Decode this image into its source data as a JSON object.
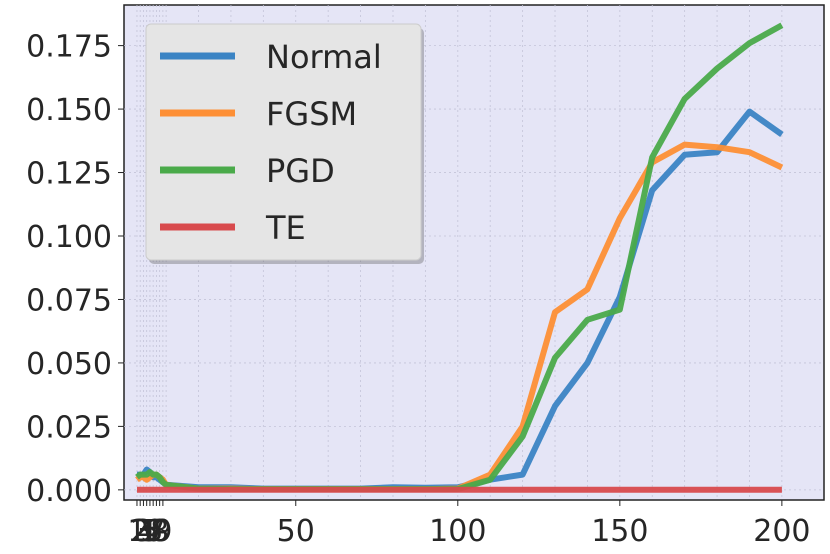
{
  "chart_data": {
    "type": "line",
    "title": "",
    "xlabel": "",
    "ylabel": "",
    "x": [
      1,
      2,
      3,
      4,
      5,
      6,
      7,
      8,
      9,
      10,
      20,
      30,
      40,
      50,
      60,
      70,
      80,
      90,
      100,
      110,
      120,
      130,
      140,
      150,
      160,
      170,
      180,
      190,
      200
    ],
    "x_ticks": [
      {
        "value": 1,
        "label": "1"
      },
      {
        "value": 2,
        "label": "2"
      },
      {
        "value": 3,
        "label": "3"
      },
      {
        "value": 4,
        "label": "4"
      },
      {
        "value": 5,
        "label": "5"
      },
      {
        "value": 6,
        "label": "6"
      },
      {
        "value": 7,
        "label": "7"
      },
      {
        "value": 8,
        "label": "8"
      },
      {
        "value": 9,
        "label": "9"
      },
      {
        "value": 50,
        "label": "50"
      },
      {
        "value": 100,
        "label": "100"
      },
      {
        "value": 150,
        "label": "150"
      },
      {
        "value": 200,
        "label": "200"
      }
    ],
    "y_ticks": [
      "0.000",
      "0.025",
      "0.050",
      "0.075",
      "0.100",
      "0.125",
      "0.150",
      "0.175"
    ],
    "ylim": [
      -0.004,
      0.191
    ],
    "grid": true,
    "legend_position": "top-left",
    "series": [
      {
        "name": "Normal",
        "color": "#3b84c4",
        "values": [
          0.006,
          0.006,
          0.006,
          0.008,
          0.007,
          0.005,
          0.005,
          0.004,
          0.003,
          0.002,
          0.001,
          0.001,
          0.0005,
          0.0005,
          0.0005,
          0.0005,
          0.001,
          0.0008,
          0.001,
          0.004,
          0.006,
          0.033,
          0.05,
          0.076,
          0.118,
          0.132,
          0.133,
          0.149,
          0.14
        ]
      },
      {
        "name": "FGSM",
        "color": "#fd8f35",
        "values": [
          0.004,
          0.005,
          0.005,
          0.004,
          0.005,
          0.006,
          0.006,
          0.005,
          0.004,
          0.002,
          0.0005,
          0.0005,
          0.0003,
          0.0003,
          0.0003,
          0.0003,
          0.0003,
          0.0003,
          0.0005,
          0.006,
          0.025,
          0.07,
          0.079,
          0.107,
          0.129,
          0.136,
          0.135,
          0.133,
          0.127
        ]
      },
      {
        "name": "PGD",
        "color": "#4aaa4a",
        "values": [
          0.005,
          0.006,
          0.006,
          0.006,
          0.007,
          0.006,
          0.006,
          0.005,
          0.003,
          0.002,
          0.0005,
          0.0003,
          0.0003,
          0.0003,
          0.0003,
          0.0003,
          0.0003,
          0.0003,
          0.0003,
          0.004,
          0.021,
          0.052,
          0.067,
          0.071,
          0.131,
          0.154,
          0.166,
          0.176,
          0.183
        ]
      },
      {
        "name": "TE",
        "color": "#d84a4d",
        "values": [
          0,
          0,
          0,
          0,
          0,
          0,
          0,
          0,
          0,
          0,
          0,
          0,
          0,
          0,
          0,
          0,
          0,
          0,
          0,
          0,
          0,
          0,
          0,
          0,
          0,
          0,
          0,
          0,
          0
        ]
      }
    ]
  }
}
